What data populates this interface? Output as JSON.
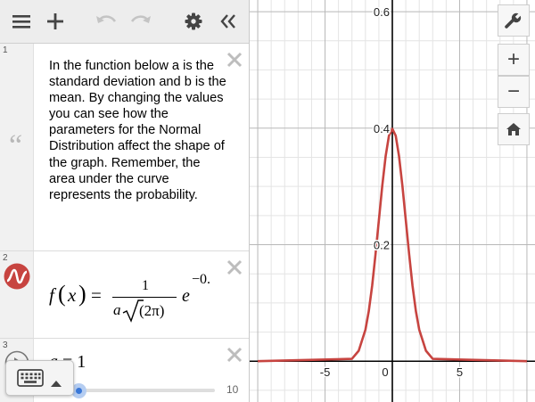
{
  "toolbar": {
    "menu_icon": "hamburger-menu-icon",
    "add_icon": "plus-icon",
    "undo_icon": "undo-icon",
    "redo_icon": "redo-icon",
    "settings_icon": "gear-icon",
    "collapse_icon": "double-chevron-left-icon"
  },
  "expressions": [
    {
      "index": "1",
      "type": "note",
      "icon": "quote-icon",
      "text": "In the function below a is the standard deviation and b is the mean. By changing the values you can see how the parameters for the Normal Distribution affect the shape of the graph. Remember, the area under the curve represents the probability."
    },
    {
      "index": "2",
      "type": "function",
      "icon": "curve-icon",
      "color": "#c74440",
      "fname": "f",
      "var": "x",
      "equals": "=",
      "numerator": "1",
      "den_a": "a",
      "den_inner": "(2π)",
      "exp_base": "e",
      "exp_text": "−0."
    },
    {
      "index": "3",
      "type": "slider",
      "icon": "play-circle-icon",
      "var": "a",
      "equals": "=",
      "value": "1",
      "slider_min": 0,
      "slider_max": "10",
      "slider_level": 0.1
    }
  ],
  "keypad": {
    "keyboard_icon": "keyboard-icon",
    "toggle_icon": "triangle-up-icon"
  },
  "graph_controls": {
    "wrench_icon": "wrench-icon",
    "zoom_in": "+",
    "zoom_out": "−",
    "home_icon": "home-icon"
  },
  "colors": {
    "curve": "#c74440",
    "slider_point": "#3a78d8",
    "axis": "#000000",
    "grid_major": "#b8b8b8",
    "grid_minor": "#e4e4e4"
  },
  "chart_data": {
    "type": "line",
    "xlim": [
      -10.6,
      10.6
    ],
    "ylim": [
      -0.07,
      0.62
    ],
    "grid": true,
    "x_ticks": [
      {
        "v": -5,
        "label": "-5"
      },
      {
        "v": 0,
        "label": "0"
      },
      {
        "v": 5,
        "label": "5"
      }
    ],
    "y_ticks": [
      {
        "v": 0.2,
        "label": "0.2"
      },
      {
        "v": 0.4,
        "label": "0.4"
      },
      {
        "v": 0.6,
        "label": "0.6"
      }
    ],
    "series": [
      {
        "x": [
          -10,
          -3,
          -2.5,
          -2,
          -1.75,
          -1.5,
          -1.25,
          -1,
          -0.75,
          -0.5,
          -0.25,
          0,
          0.25,
          0.5,
          0.75,
          1,
          1.25,
          1.5,
          1.75,
          2,
          2.5,
          3,
          10
        ],
        "y": [
          0,
          0.004,
          0.018,
          0.054,
          0.086,
          0.13,
          0.183,
          0.242,
          0.301,
          0.352,
          0.387,
          0.399,
          0.387,
          0.352,
          0.301,
          0.242,
          0.183,
          0.13,
          0.086,
          0.054,
          0.018,
          0.004,
          0
        ]
      }
    ]
  }
}
